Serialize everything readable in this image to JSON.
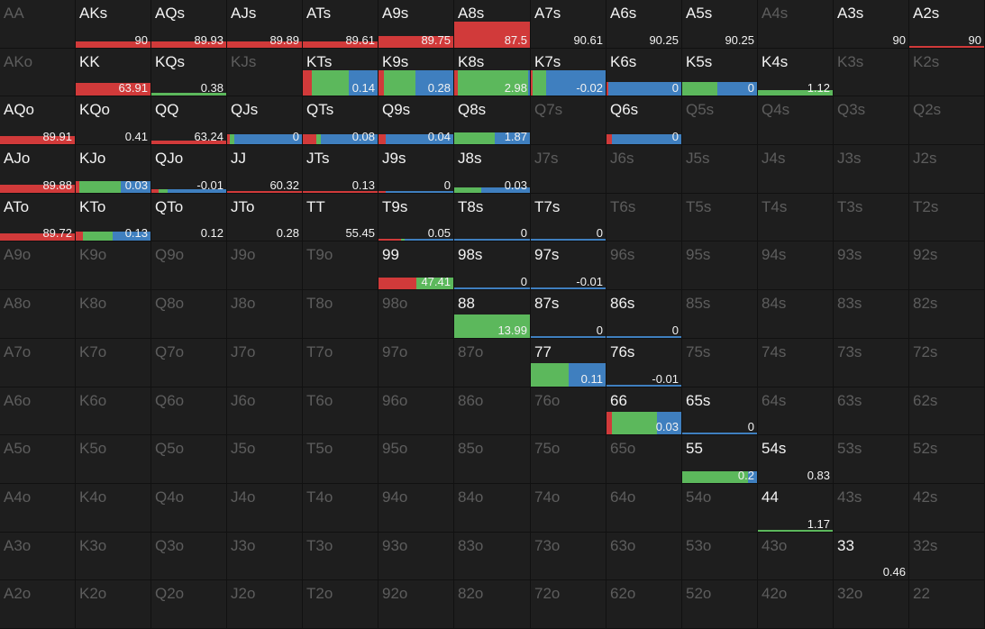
{
  "colors": {
    "red": "#d13a3a",
    "green": "#5cb85c",
    "blue": "#3f7fbf",
    "active_text": "#f2f2f2",
    "inactive_text": "#5d5d5d",
    "cell_bg": "#1e1e1e"
  },
  "ranks": [
    "A",
    "K",
    "Q",
    "J",
    "T",
    "9",
    "8",
    "7",
    "6",
    "5",
    "4",
    "3",
    "2"
  ],
  "cells": {
    "AKs": {
      "value": "90",
      "bar": 0.25,
      "mix": [
        1,
        0,
        0
      ]
    },
    "AQs": {
      "value": "89.93",
      "bar": 0.25,
      "mix": [
        1,
        0,
        0
      ]
    },
    "AJs": {
      "value": "89.89",
      "bar": 0.25,
      "mix": [
        1,
        0,
        0
      ]
    },
    "ATs": {
      "value": "89.61",
      "bar": 0.25,
      "mix": [
        1,
        0,
        0
      ]
    },
    "A9s": {
      "value": "89.75",
      "bar": 0.45,
      "mix": [
        1,
        0,
        0
      ]
    },
    "A8s": {
      "value": "87.5",
      "bar": 1.0,
      "mix": [
        1,
        0,
        0
      ]
    },
    "A7s": {
      "value": "90.61",
      "bar": 0,
      "mix": [
        1,
        0,
        0
      ]
    },
    "A6s": {
      "value": "90.25",
      "bar": 0,
      "mix": [
        1,
        0,
        0
      ]
    },
    "A5s": {
      "value": "90.25",
      "bar": 0,
      "mix": [
        1,
        0,
        0
      ]
    },
    "A3s": {
      "value": "90",
      "bar": 0,
      "mix": [
        1,
        0,
        0
      ]
    },
    "A2s": {
      "value": "90",
      "bar": 0.03,
      "mix": [
        1,
        0,
        0
      ]
    },
    "KK": {
      "value": "63.91",
      "bar": 0.5,
      "mix": [
        1,
        0,
        0
      ]
    },
    "KQs": {
      "value": "0.38",
      "bar": 0.1,
      "mix": [
        0,
        1,
        0
      ]
    },
    "KTs": {
      "value": "0.14",
      "bar": 1.0,
      "mix": [
        0.12,
        0.5,
        0.38
      ]
    },
    "K9s": {
      "value": "0.28",
      "bar": 1.0,
      "mix": [
        0.07,
        0.43,
        0.5
      ]
    },
    "K8s": {
      "value": "2.98",
      "bar": 1.0,
      "mix": [
        0.05,
        0.93,
        0.02
      ]
    },
    "K7s": {
      "value": "-0.02",
      "bar": 1.0,
      "mix": [
        0.02,
        0.18,
        0.8
      ]
    },
    "K6s": {
      "value": "0",
      "bar": 0.55,
      "mix": [
        0.02,
        0,
        0.98
      ]
    },
    "K5s": {
      "value": "0",
      "bar": 0.55,
      "mix": [
        0,
        0.47,
        0.53
      ]
    },
    "K4s": {
      "value": "1.12",
      "bar": 0.2,
      "mix": [
        0,
        1,
        0
      ]
    },
    "AQo": {
      "value": "89.91",
      "bar": 0.3,
      "mix": [
        1,
        0,
        0
      ]
    },
    "KQo": {
      "value": "0.41",
      "bar": 0,
      "mix": [
        0,
        1,
        0
      ]
    },
    "QQ": {
      "value": "63.24",
      "bar": 0.13,
      "mix": [
        1,
        0,
        0
      ]
    },
    "QJs": {
      "value": "0",
      "bar": 0.38,
      "mix": [
        0.04,
        0.06,
        0.9
      ]
    },
    "QTs": {
      "value": "0.08",
      "bar": 0.38,
      "mix": [
        0.18,
        0.06,
        0.76
      ]
    },
    "Q9s": {
      "value": "0.04",
      "bar": 0.38,
      "mix": [
        0.1,
        0,
        0.9
      ]
    },
    "Q8s": {
      "value": "1.87",
      "bar": 0.45,
      "mix": [
        0,
        0.53,
        0.47
      ]
    },
    "Q6s": {
      "value": "0",
      "bar": 0.38,
      "mix": [
        0.07,
        0,
        0.93
      ]
    },
    "AJo": {
      "value": "89.88",
      "bar": 0.3,
      "mix": [
        1,
        0,
        0
      ]
    },
    "KJo": {
      "value": "0.03",
      "bar": 0.45,
      "mix": [
        0.05,
        0.55,
        0.4
      ]
    },
    "QJo": {
      "value": "-0.01",
      "bar": 0.13,
      "mix": [
        0.1,
        0.12,
        0.78
      ]
    },
    "JJ": {
      "value": "60.32",
      "bar": 0.08,
      "mix": [
        1,
        0,
        0
      ]
    },
    "JTs": {
      "value": "0.13",
      "bar": 0.05,
      "mix": [
        1,
        0,
        0
      ]
    },
    "J9s": {
      "value": "0",
      "bar": 0.08,
      "mix": [
        0.1,
        0,
        0.9
      ]
    },
    "J8s": {
      "value": "0.03",
      "bar": 0.2,
      "mix": [
        0,
        0.36,
        0.64
      ]
    },
    "ATo": {
      "value": "89.72",
      "bar": 0.3,
      "mix": [
        1,
        0,
        0
      ]
    },
    "KTo": {
      "value": "0.13",
      "bar": 0.35,
      "mix": [
        0.1,
        0.4,
        0.5
      ]
    },
    "QTo": {
      "value": "0.12",
      "bar": 0,
      "mix": [
        0,
        1,
        0
      ]
    },
    "JTo": {
      "value": "0.28",
      "bar": 0,
      "mix": [
        0,
        1,
        0
      ]
    },
    "TT": {
      "value": "55.45",
      "bar": 0,
      "mix": [
        1,
        0,
        0
      ]
    },
    "T9s": {
      "value": "0.05",
      "bar": 0.08,
      "mix": [
        0.3,
        0.05,
        0.65
      ]
    },
    "T8s": {
      "value": "0",
      "bar": 0.08,
      "mix": [
        0,
        0,
        1
      ]
    },
    "T7s": {
      "value": "0",
      "bar": 0.08,
      "mix": [
        0,
        0,
        1
      ]
    },
    "99": {
      "value": "47.41",
      "bar": 0.45,
      "mix": [
        0.5,
        0.5,
        0
      ]
    },
    "98s": {
      "value": "0",
      "bar": 0.08,
      "mix": [
        0,
        0,
        1
      ]
    },
    "97s": {
      "value": "-0.01",
      "bar": 0.08,
      "mix": [
        0,
        0,
        1
      ]
    },
    "88": {
      "value": "13.99",
      "bar": 0.9,
      "mix": [
        0,
        1,
        0
      ]
    },
    "87s": {
      "value": "0",
      "bar": 0.08,
      "mix": [
        0,
        0,
        1
      ]
    },
    "86s": {
      "value": "0",
      "bar": 0.08,
      "mix": [
        0,
        0,
        1
      ]
    },
    "77": {
      "value": "0.11",
      "bar": 0.9,
      "mix": [
        0,
        0.5,
        0.5
      ]
    },
    "76s": {
      "value": "-0.01",
      "bar": 0.08,
      "mix": [
        0,
        0,
        1
      ]
    },
    "66": {
      "value": "0.03",
      "bar": 0.9,
      "mix": [
        0.07,
        0.6,
        0.33
      ]
    },
    "65s": {
      "value": "0",
      "bar": 0.08,
      "mix": [
        0,
        0,
        1
      ]
    },
    "55": {
      "value": "0.2",
      "bar": 0.45,
      "mix": [
        0,
        0.88,
        0.12
      ]
    },
    "54s": {
      "value": "0.83",
      "bar": 0,
      "mix": [
        0,
        1,
        0
      ]
    },
    "44": {
      "value": "1.17",
      "bar": 0.03,
      "mix": [
        0,
        1,
        0
      ]
    },
    "33": {
      "value": "0.46",
      "bar": 0,
      "mix": [
        0,
        1,
        0
      ]
    }
  }
}
